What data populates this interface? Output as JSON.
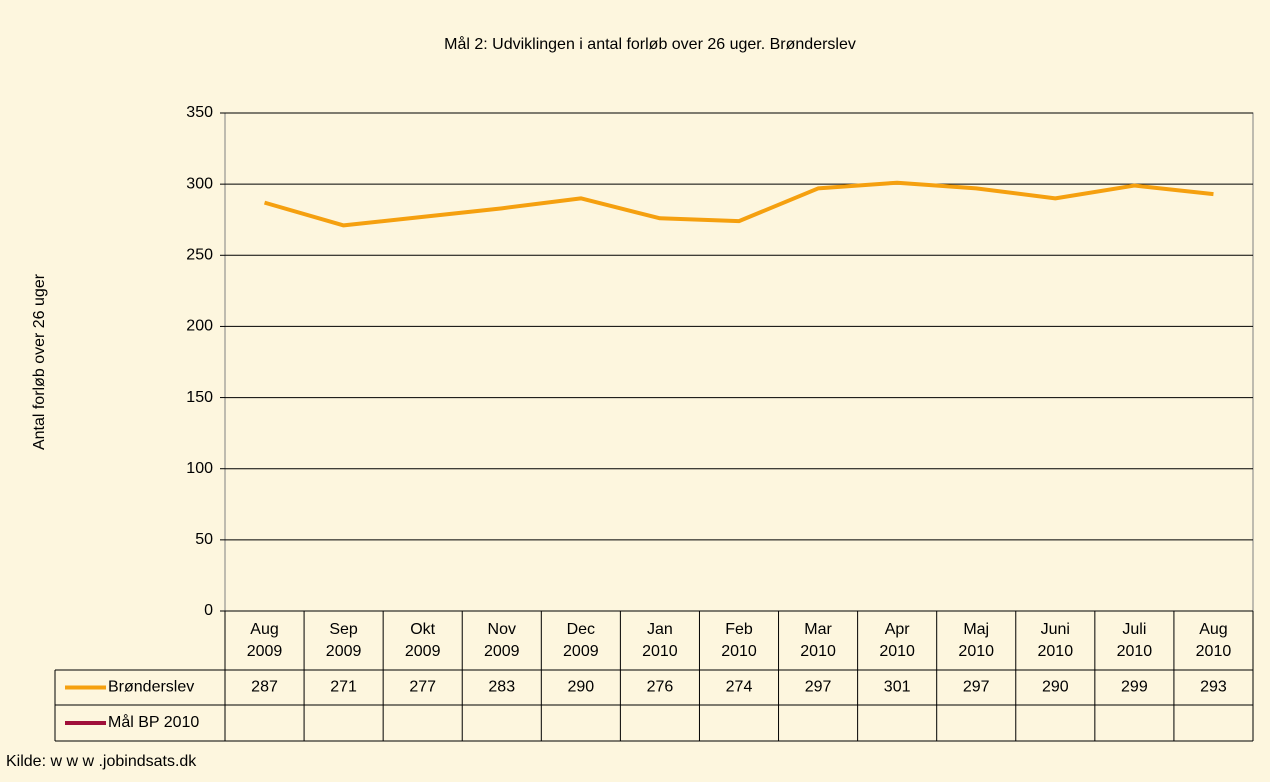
{
  "chart_data": {
    "type": "line",
    "title": "Mål 2: Udviklingen i antal forløb over 26 uger. Brønderslev",
    "y_label": "Antal forløb over 26 uger",
    "categories": [
      "Aug 2009",
      "Sep 2009",
      "Okt 2009",
      "Nov 2009",
      "Dec 2009",
      "Jan 2010",
      "Feb 2010",
      "Mar 2010",
      "Apr 2010",
      "Maj 2010",
      "Juni 2010",
      "Juli 2010",
      "Aug 2010"
    ],
    "series": [
      {
        "name": "Brønderslev",
        "color": "#f5a00f",
        "values": [
          287,
          271,
          277,
          283,
          290,
          276,
          274,
          297,
          301,
          297,
          290,
          299,
          293
        ]
      },
      {
        "name": "Mål BP 2010",
        "color": "#a0103a",
        "values": [
          null,
          null,
          null,
          null,
          null,
          null,
          null,
          null,
          null,
          null,
          null,
          null,
          null
        ]
      }
    ],
    "ylim": [
      0,
      350
    ],
    "yticks": [
      0,
      50,
      100,
      150,
      200,
      250,
      300,
      350
    ],
    "grid": true,
    "source": "Kilde: w w w .jobindsats.dk"
  }
}
